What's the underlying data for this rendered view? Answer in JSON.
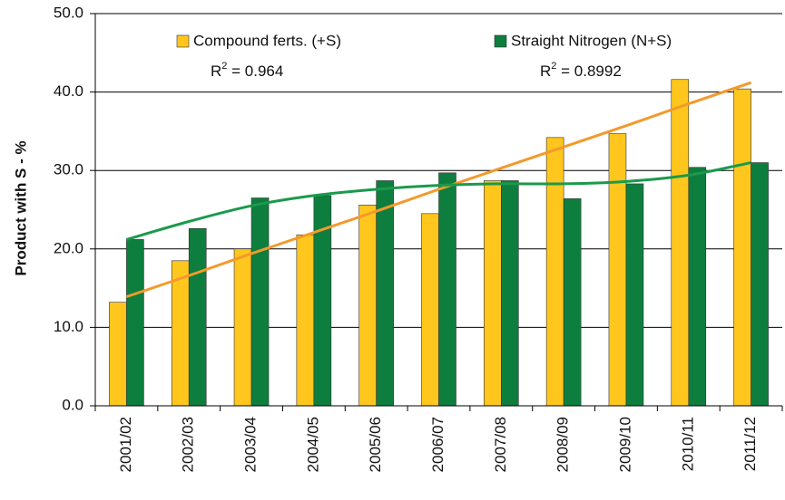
{
  "chart_data": {
    "type": "bar",
    "y_label": "Product with S - %",
    "categories": [
      "2001/02",
      "2002/03",
      "2003/04",
      "2004/05",
      "2005/06",
      "2006/07",
      "2007/08",
      "2008/09",
      "2009/10",
      "2010/11",
      "2011/12"
    ],
    "series": [
      {
        "name": "Compound ferts. (+S)",
        "color": "#FFC61E",
        "trend_color": "#F39A2B",
        "values": [
          13.2,
          18.5,
          20.0,
          21.8,
          25.6,
          24.5,
          28.7,
          34.2,
          34.7,
          41.6,
          40.4
        ],
        "trend": [
          13.9,
          16.6,
          19.4,
          22.1,
          24.8,
          27.6,
          30.3,
          33.0,
          35.7,
          38.5,
          41.2
        ],
        "r2_label": {
          "base": "R",
          "sup": "2",
          "rest": " = 0.964"
        }
      },
      {
        "name": "Straight Nitrogen (N+S)",
        "color": "#0E7E3E",
        "trend_color": "#1A9A4A",
        "values": [
          21.2,
          22.6,
          26.5,
          26.8,
          28.7,
          29.7,
          28.7,
          26.4,
          28.3,
          30.4,
          31.0
        ],
        "trend": [
          21.2,
          23.5,
          25.5,
          26.8,
          27.6,
          28.1,
          28.3,
          28.3,
          28.6,
          29.4,
          31.0
        ],
        "r2_label": {
          "base": "R",
          "sup": "2",
          "rest": " = 0.8992"
        }
      }
    ],
    "ylim": [
      0,
      50
    ],
    "yticks": [
      {
        "value": 0,
        "label": "0.0"
      },
      {
        "value": 10,
        "label": "10.0"
      },
      {
        "value": 20,
        "label": "20.0"
      },
      {
        "value": 30,
        "label": "30.0"
      },
      {
        "value": 40,
        "label": "40.0"
      },
      {
        "value": 50,
        "label": "50.0"
      }
    ],
    "grid": true
  }
}
